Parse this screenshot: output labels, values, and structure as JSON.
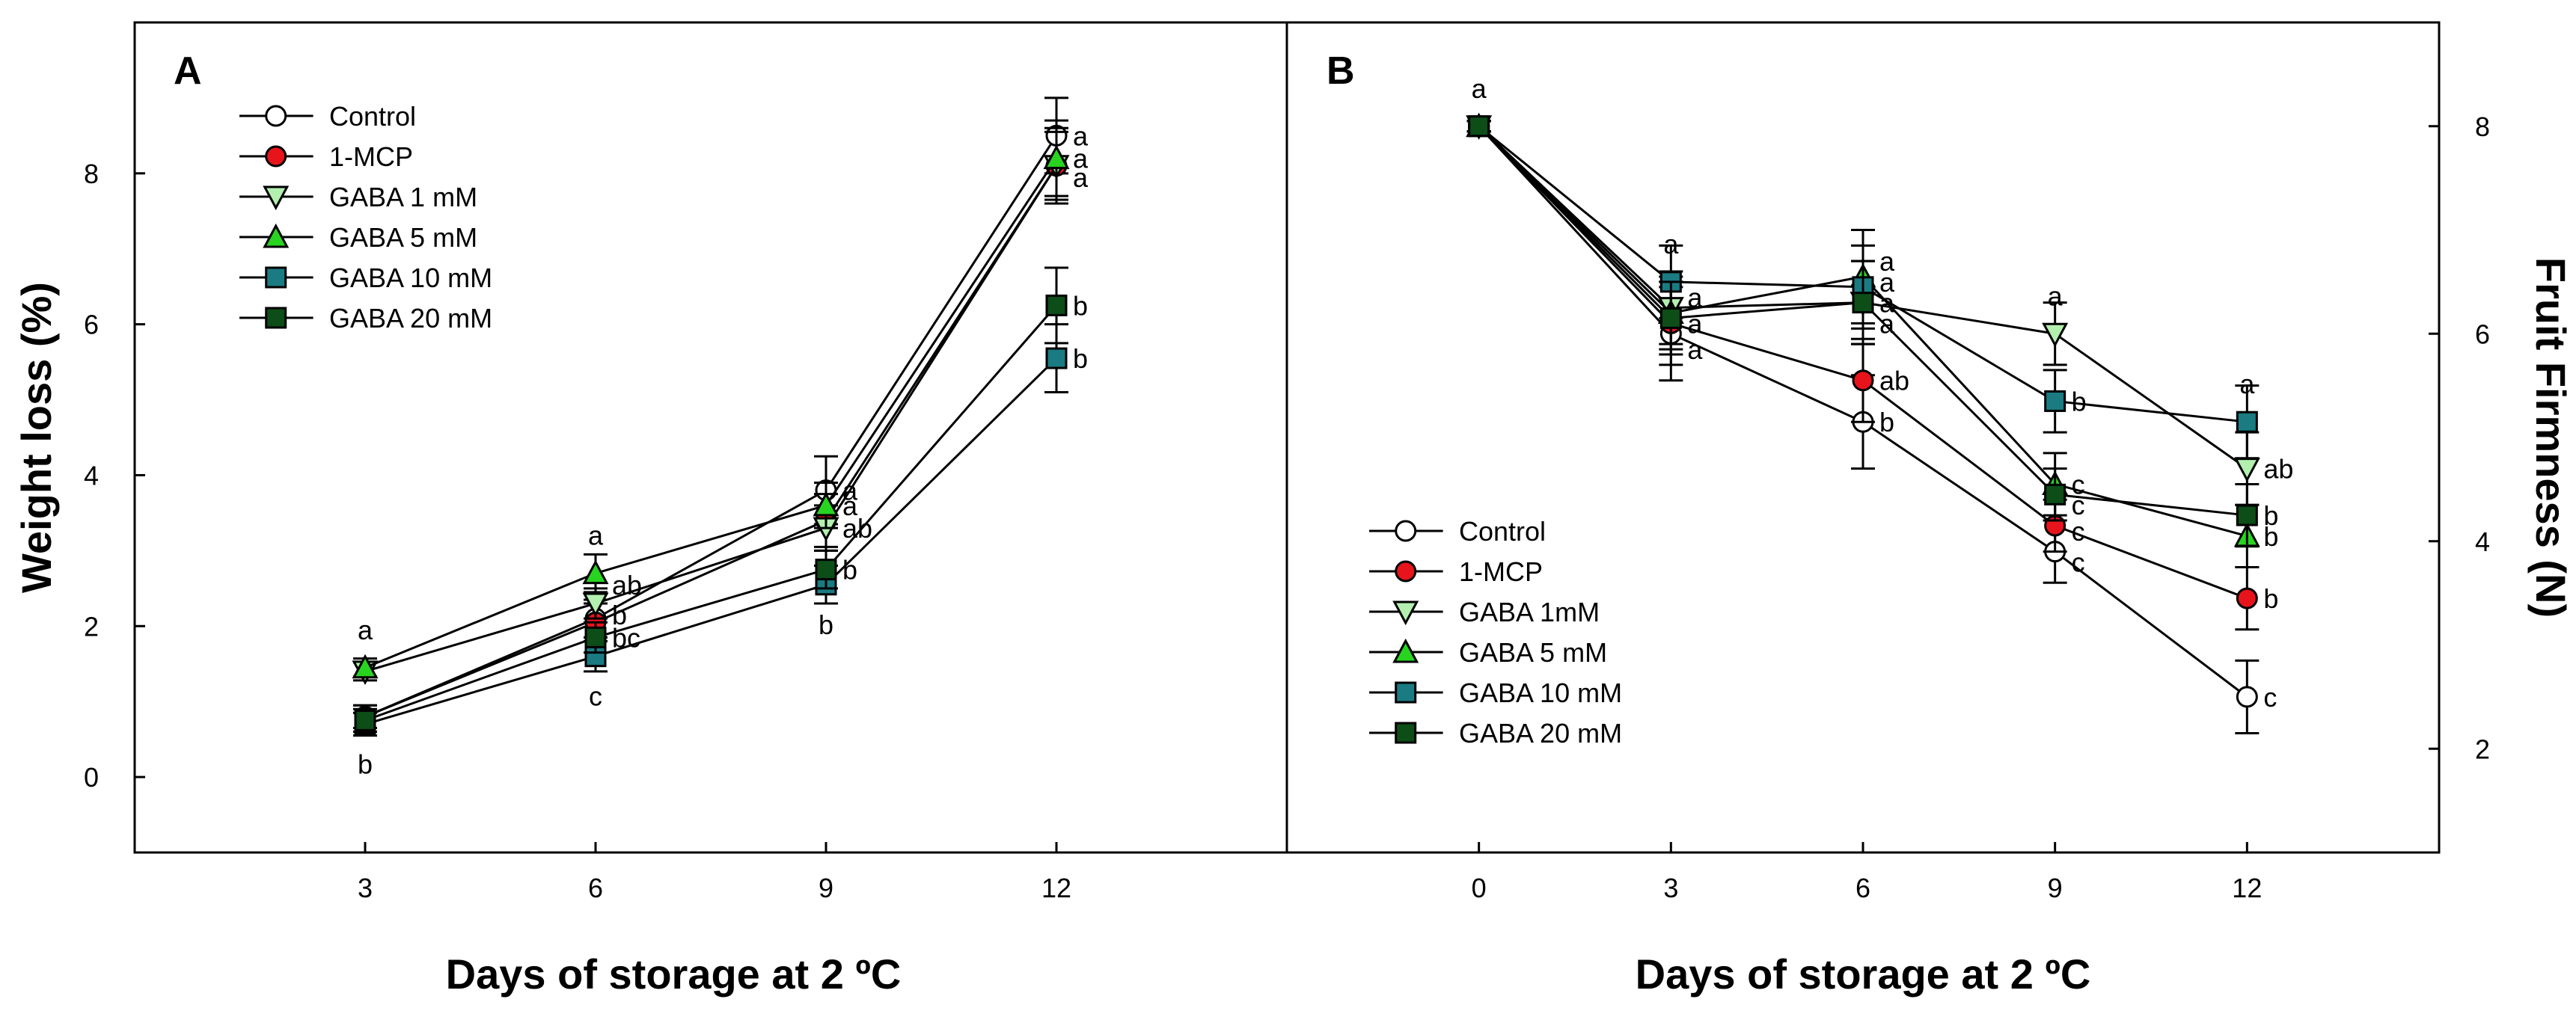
{
  "chart_data": [
    {
      "panel": "A",
      "type": "line",
      "xlabel": "Days of storage at 2 ºC",
      "ylabel": "Weight loss (%)",
      "x": [
        3,
        6,
        9,
        12
      ],
      "xticks": [
        3,
        6,
        9,
        12
      ],
      "yticks": [
        0,
        2,
        4,
        6,
        8
      ],
      "xlim": [
        0,
        15
      ],
      "ylim": [
        -1,
        10
      ],
      "y_axis_side": "left",
      "legend_position": "top-left",
      "series": [
        {
          "name": "Control",
          "marker": "circle",
          "color": "#ffffff",
          "values": [
            0.8,
            2.1,
            3.8,
            8.5
          ],
          "errors": [
            0.15,
            0.25,
            0.45,
            0.5
          ]
        },
        {
          "name": "1-MCP",
          "marker": "circle",
          "color": "#e8141b",
          "values": [
            0.8,
            2.05,
            3.4,
            8.1
          ],
          "errors": [
            0.15,
            0.25,
            0.35,
            0.45
          ]
        },
        {
          "name": "GABA 1 mM",
          "marker": "triangle-down",
          "color": "#b3f0b0",
          "values": [
            1.4,
            2.3,
            3.3,
            8.1
          ],
          "errors": [
            0.12,
            0.2,
            0.3,
            0.5
          ]
        },
        {
          "name": "GABA 5 mM",
          "marker": "triangle-up",
          "color": "#29d421",
          "values": [
            1.45,
            2.7,
            3.6,
            8.2
          ],
          "errors": [
            0.12,
            0.25,
            0.3,
            0.5
          ]
        },
        {
          "name": "GABA 10 mM",
          "marker": "square",
          "color": "#1b7b82",
          "values": [
            0.7,
            1.6,
            2.55,
            5.55
          ],
          "errors": [
            0.15,
            0.2,
            0.25,
            0.45
          ]
        },
        {
          "name": "GABA 20 mM",
          "marker": "square",
          "color": "#0c4d18",
          "values": [
            0.75,
            1.85,
            2.75,
            6.25
          ],
          "errors": [
            0.15,
            0.2,
            0.25,
            0.5
          ]
        }
      ],
      "annotations": [
        {
          "text": "a",
          "x": 3,
          "y": 1.45,
          "pos": "above"
        },
        {
          "text": "b",
          "x": 3,
          "y": 0.7,
          "pos": "below"
        },
        {
          "text": "a",
          "x": 6,
          "y": 2.7,
          "pos": "above"
        },
        {
          "text": "ab",
          "x": 6,
          "y": 2.55,
          "pos": "right"
        },
        {
          "text": "b",
          "x": 6,
          "y": 2.15,
          "pos": "right"
        },
        {
          "text": "bc",
          "x": 6,
          "y": 1.85,
          "pos": "right"
        },
        {
          "text": "c",
          "x": 6,
          "y": 1.6,
          "pos": "below"
        },
        {
          "text": "a",
          "x": 9,
          "y": 3.8,
          "pos": "right"
        },
        {
          "text": "a",
          "x": 9,
          "y": 3.6,
          "pos": "right"
        },
        {
          "text": "ab",
          "x": 9,
          "y": 3.3,
          "pos": "right"
        },
        {
          "text": "b",
          "x": 9,
          "y": 2.75,
          "pos": "right"
        },
        {
          "text": "b",
          "x": 9,
          "y": 2.55,
          "pos": "below"
        },
        {
          "text": "a",
          "x": 12,
          "y": 8.5,
          "pos": "right"
        },
        {
          "text": "a",
          "x": 12,
          "y": 8.2,
          "pos": "right"
        },
        {
          "text": "a",
          "x": 12,
          "y": 7.95,
          "pos": "right"
        },
        {
          "text": "b",
          "x": 12,
          "y": 6.25,
          "pos": "right"
        },
        {
          "text": "b",
          "x": 12,
          "y": 5.55,
          "pos": "right"
        }
      ]
    },
    {
      "panel": "B",
      "type": "line",
      "xlabel": "Days of storage at 2 ºC",
      "ylabel": "Fruit Firmness (N)",
      "x": [
        0,
        3,
        6,
        9,
        12
      ],
      "xticks": [
        0,
        3,
        6,
        9,
        12
      ],
      "yticks": [
        2,
        4,
        6,
        8
      ],
      "xlim": [
        -3,
        15
      ],
      "ylim": [
        1,
        9
      ],
      "y_axis_side": "right",
      "legend_position": "bottom-left",
      "series": [
        {
          "name": "Control",
          "marker": "circle",
          "color": "#ffffff",
          "values": [
            8.0,
            6.0,
            5.15,
            3.9,
            2.5
          ],
          "errors": [
            0.05,
            0.45,
            0.45,
            0.3,
            0.35
          ]
        },
        {
          "name": "1-MCP",
          "marker": "circle",
          "color": "#e8141b",
          "values": [
            8.0,
            6.1,
            5.55,
            4.15,
            3.45
          ],
          "errors": [
            0.05,
            0.4,
            0.4,
            0.25,
            0.3
          ]
        },
        {
          "name": "GABA 1mM",
          "marker": "triangle-down",
          "color": "#b3f0b0",
          "values": [
            8.0,
            6.25,
            6.3,
            6.0,
            4.7
          ],
          "errors": [
            0.05,
            0.35,
            0.4,
            0.3,
            0.35
          ]
        },
        {
          "name": "GABA 5 mM",
          "marker": "triangle-up",
          "color": "#29d421",
          "values": [
            8.0,
            6.2,
            6.55,
            4.55,
            4.05
          ],
          "errors": [
            0.05,
            0.35,
            0.45,
            0.3,
            0.3
          ]
        },
        {
          "name": "GABA 10 mM",
          "marker": "square",
          "color": "#1b7b82",
          "values": [
            8.0,
            6.5,
            6.45,
            5.35,
            5.15
          ],
          "errors": [
            0.05,
            0.35,
            0.4,
            0.3,
            0.35
          ]
        },
        {
          "name": "GABA 20 mM",
          "marker": "square",
          "color": "#0c4d18",
          "values": [
            8.0,
            6.15,
            6.3,
            4.45,
            4.25
          ],
          "errors": [
            0.05,
            0.35,
            0.4,
            0.25,
            0.3
          ]
        }
      ],
      "annotations": [
        {
          "text": "a",
          "x": 0,
          "y": 8.0,
          "pos": "above"
        },
        {
          "text": "a",
          "x": 3,
          "y": 6.5,
          "pos": "above"
        },
        {
          "text": "a",
          "x": 3,
          "y": 6.35,
          "pos": "right"
        },
        {
          "text": "a",
          "x": 3,
          "y": 6.1,
          "pos": "right"
        },
        {
          "text": "a",
          "x": 3,
          "y": 5.85,
          "pos": "right"
        },
        {
          "text": "a",
          "x": 6,
          "y": 6.7,
          "pos": "right"
        },
        {
          "text": "a",
          "x": 6,
          "y": 6.5,
          "pos": "right"
        },
        {
          "text": "a",
          "x": 6,
          "y": 6.3,
          "pos": "right"
        },
        {
          "text": "a",
          "x": 6,
          "y": 6.1,
          "pos": "right"
        },
        {
          "text": "ab",
          "x": 6,
          "y": 5.55,
          "pos": "right"
        },
        {
          "text": "b",
          "x": 6,
          "y": 5.15,
          "pos": "right"
        },
        {
          "text": "a",
          "x": 9,
          "y": 6.0,
          "pos": "above"
        },
        {
          "text": "b",
          "x": 9,
          "y": 5.35,
          "pos": "right"
        },
        {
          "text": "c",
          "x": 9,
          "y": 4.55,
          "pos": "right"
        },
        {
          "text": "c",
          "x": 9,
          "y": 4.35,
          "pos": "right"
        },
        {
          "text": "c",
          "x": 9,
          "y": 4.1,
          "pos": "right"
        },
        {
          "text": "c",
          "x": 9,
          "y": 3.8,
          "pos": "right"
        },
        {
          "text": "a",
          "x": 12,
          "y": 5.15,
          "pos": "above"
        },
        {
          "text": "ab",
          "x": 12,
          "y": 4.7,
          "pos": "right"
        },
        {
          "text": "b",
          "x": 12,
          "y": 4.25,
          "pos": "right"
        },
        {
          "text": "b",
          "x": 12,
          "y": 4.05,
          "pos": "right"
        },
        {
          "text": "b",
          "x": 12,
          "y": 3.45,
          "pos": "right"
        },
        {
          "text": "c",
          "x": 12,
          "y": 2.5,
          "pos": "right"
        }
      ]
    }
  ]
}
